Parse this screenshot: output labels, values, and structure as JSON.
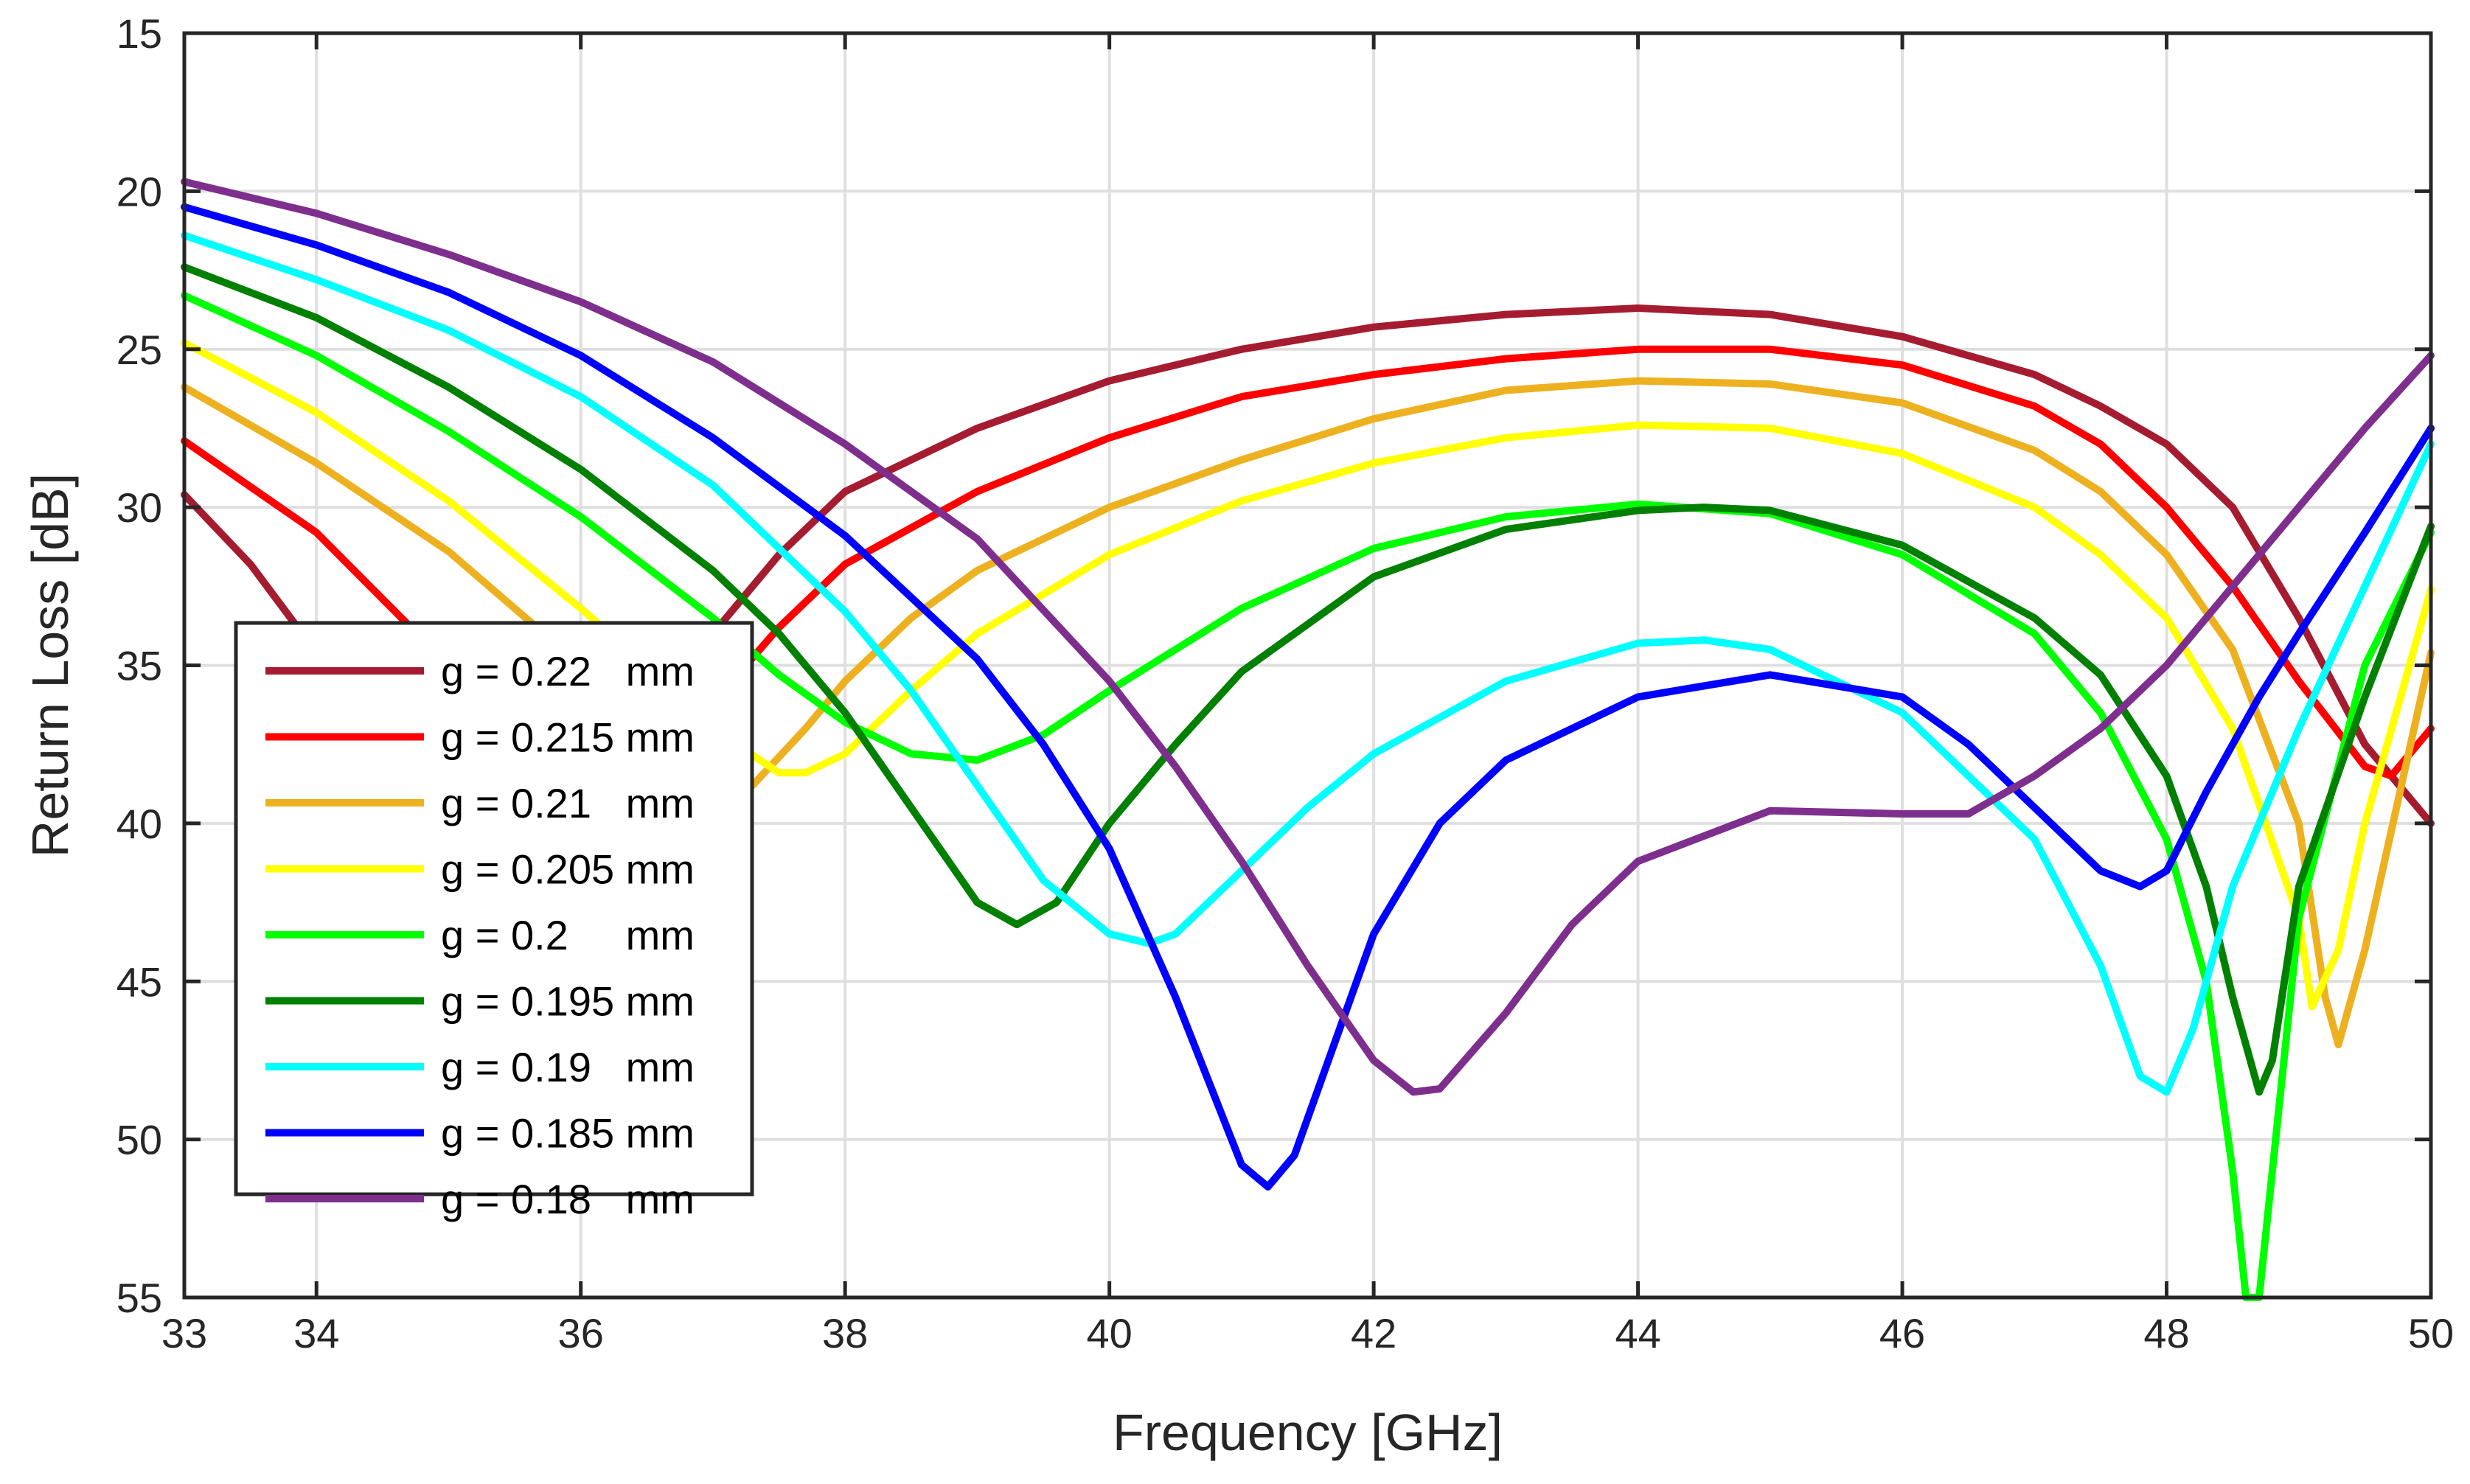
{
  "chart_data": {
    "type": "line",
    "title": "",
    "xlabel": "Frequency [GHz]",
    "ylabel": "Return Loss [dB]",
    "xlim": [
      33,
      50
    ],
    "ylim": [
      15,
      55
    ],
    "y_reversed": true,
    "grid": true,
    "legend_position": "lower-left",
    "xticks": [
      33,
      34,
      36,
      38,
      40,
      42,
      44,
      46,
      48,
      50
    ],
    "yticks": [
      15,
      20,
      25,
      30,
      35,
      40,
      45,
      50,
      55
    ],
    "series": [
      {
        "name": "g = 0.22   mm",
        "color": "#a51c30",
        "x": [
          33,
          33.5,
          34,
          34.5,
          35,
          35.5,
          36,
          36.3,
          36.6,
          37,
          37.5,
          38,
          39,
          40,
          41,
          42,
          43,
          44,
          45,
          46,
          47,
          47.5,
          48,
          48.5,
          49,
          49.5,
          50
        ],
        "y": [
          29.6,
          31.8,
          34.6,
          37.6,
          40.6,
          43.2,
          43.0,
          40.5,
          37.2,
          34.0,
          31.5,
          29.5,
          27.5,
          26.0,
          25.0,
          24.3,
          23.9,
          23.7,
          23.9,
          24.6,
          25.8,
          26.8,
          28.0,
          30.0,
          33.5,
          37.5,
          40.0
        ]
      },
      {
        "name": "g = 0.215 mm",
        "color": "#ff0000",
        "x": [
          33,
          34,
          35,
          35.5,
          36,
          36.5,
          37,
          37.5,
          38,
          39,
          40,
          41,
          42,
          43,
          44,
          45,
          46,
          47,
          47.5,
          48,
          48.5,
          49,
          49.5,
          49.7,
          50
        ],
        "y": [
          27.9,
          30.8,
          35.0,
          37.8,
          40.5,
          39.8,
          36.2,
          33.8,
          31.8,
          29.5,
          27.8,
          26.5,
          25.8,
          25.3,
          25.0,
          25.0,
          25.5,
          26.8,
          28.0,
          30.0,
          32.5,
          35.5,
          38.2,
          38.5,
          37.0
        ]
      },
      {
        "name": "g = 0.21   mm",
        "color": "#edb120",
        "x": [
          33,
          34,
          35,
          36,
          36.5,
          37,
          37.3,
          37.7,
          38,
          38.5,
          39,
          40,
          41,
          42,
          43,
          44,
          45,
          46,
          47,
          47.5,
          48,
          48.5,
          49,
          49.2,
          49.3,
          49.5,
          50
        ],
        "y": [
          26.2,
          28.6,
          31.4,
          35.0,
          37.5,
          39.0,
          38.8,
          37.0,
          35.5,
          33.5,
          32.0,
          30.0,
          28.5,
          27.2,
          26.3,
          26.0,
          26.1,
          26.7,
          28.2,
          29.5,
          31.5,
          34.5,
          40.0,
          45.5,
          47.0,
          44.0,
          34.6
        ]
      },
      {
        "name": "g = 0.205 mm",
        "color": "#ffff00",
        "x": [
          33,
          34,
          35,
          36,
          36.5,
          37,
          37.5,
          37.7,
          38,
          38.5,
          39,
          40,
          41,
          42,
          43,
          44,
          45,
          46,
          47,
          47.5,
          48,
          48.5,
          49,
          49.1,
          49.3,
          49.5,
          50
        ],
        "y": [
          24.8,
          27.0,
          29.8,
          33.2,
          35.0,
          37.0,
          38.4,
          38.4,
          37.8,
          35.8,
          34.0,
          31.5,
          29.8,
          28.6,
          27.8,
          27.4,
          27.5,
          28.3,
          30.0,
          31.5,
          33.5,
          37.0,
          43.0,
          45.8,
          44.0,
          40.0,
          32.6
        ]
      },
      {
        "name": "g = 0.2     mm",
        "color": "#00ff00",
        "x": [
          33,
          34,
          35,
          36,
          37,
          37.5,
          38,
          38.5,
          39,
          39.5,
          40,
          41,
          42,
          43,
          44,
          45,
          46,
          47,
          47.5,
          48,
          48.3,
          48.5,
          48.6,
          48.7,
          48.8,
          49,
          49.5,
          50
        ],
        "y": [
          23.3,
          25.2,
          27.6,
          30.3,
          33.5,
          35.3,
          36.8,
          37.8,
          38.0,
          37.2,
          35.8,
          33.2,
          31.3,
          30.3,
          29.9,
          30.2,
          31.5,
          34.0,
          36.5,
          40.5,
          45.0,
          51.0,
          55.0,
          55.0,
          51.0,
          43.0,
          35.0,
          30.8
        ]
      },
      {
        "name": "g = 0.195 mm",
        "color": "#008000",
        "x": [
          33,
          34,
          35,
          36,
          37,
          37.5,
          38,
          38.5,
          39,
          39.3,
          39.6,
          40,
          40.5,
          41,
          42,
          43,
          44,
          44.5,
          45,
          46,
          47,
          47.5,
          48,
          48.3,
          48.5,
          48.7,
          48.8,
          49,
          49.5,
          50
        ],
        "y": [
          22.4,
          24.0,
          26.2,
          28.8,
          32.0,
          34.0,
          36.5,
          39.5,
          42.5,
          43.2,
          42.5,
          40.0,
          37.5,
          35.2,
          32.2,
          30.7,
          30.1,
          30.0,
          30.1,
          31.2,
          33.5,
          35.3,
          38.5,
          42.0,
          45.5,
          48.5,
          47.5,
          42.0,
          36.0,
          30.6
        ]
      },
      {
        "name": "g = 0.19   mm",
        "color": "#00ffff",
        "x": [
          33,
          34,
          35,
          36,
          37,
          38,
          38.5,
          39,
          39.5,
          40,
          40.3,
          40.5,
          41,
          41.5,
          42,
          43,
          44,
          44.5,
          45,
          46,
          47,
          47.5,
          47.8,
          48,
          48.2,
          48.5,
          49,
          49.5,
          50
        ],
        "y": [
          21.4,
          22.8,
          24.4,
          26.5,
          29.3,
          33.3,
          35.8,
          38.8,
          41.8,
          43.5,
          43.8,
          43.5,
          41.5,
          39.5,
          37.8,
          35.5,
          34.3,
          34.2,
          34.5,
          36.5,
          40.5,
          44.5,
          48.0,
          48.5,
          46.5,
          42.0,
          37.0,
          32.5,
          28.0
        ]
      },
      {
        "name": "g = 0.185 mm",
        "color": "#0000ff",
        "x": [
          33,
          34,
          35,
          36,
          37,
          38,
          39,
          39.5,
          40,
          40.5,
          41,
          41.2,
          41.4,
          41.7,
          42,
          42.5,
          43,
          44,
          45,
          46,
          46.5,
          47,
          47.5,
          47.8,
          48,
          48.3,
          48.7,
          49,
          49.5,
          50
        ],
        "y": [
          20.5,
          21.7,
          23.2,
          25.2,
          27.8,
          30.9,
          34.8,
          37.5,
          40.8,
          45.5,
          50.8,
          51.5,
          50.5,
          47.0,
          43.5,
          40.0,
          38.0,
          36.0,
          35.3,
          36.0,
          37.5,
          39.5,
          41.5,
          42.0,
          41.5,
          39.0,
          36.0,
          34.0,
          30.8,
          27.5
        ]
      },
      {
        "name": "g = 0.18   mm",
        "color": "#7e2f8e",
        "x": [
          33,
          34,
          35,
          36,
          37,
          38,
          39,
          40,
          40.5,
          41,
          41.5,
          42,
          42.3,
          42.5,
          43,
          43.5,
          44,
          45,
          46,
          46.5,
          47,
          47.5,
          48,
          48.5,
          49,
          49.5,
          50
        ],
        "y": [
          19.7,
          20.7,
          22.0,
          23.5,
          25.4,
          28.0,
          31.0,
          35.5,
          38.2,
          41.2,
          44.5,
          47.5,
          48.5,
          48.4,
          46.0,
          43.2,
          41.2,
          39.6,
          39.7,
          39.7,
          38.5,
          37.0,
          35.0,
          32.5,
          30.0,
          27.5,
          25.2
        ]
      }
    ]
  }
}
